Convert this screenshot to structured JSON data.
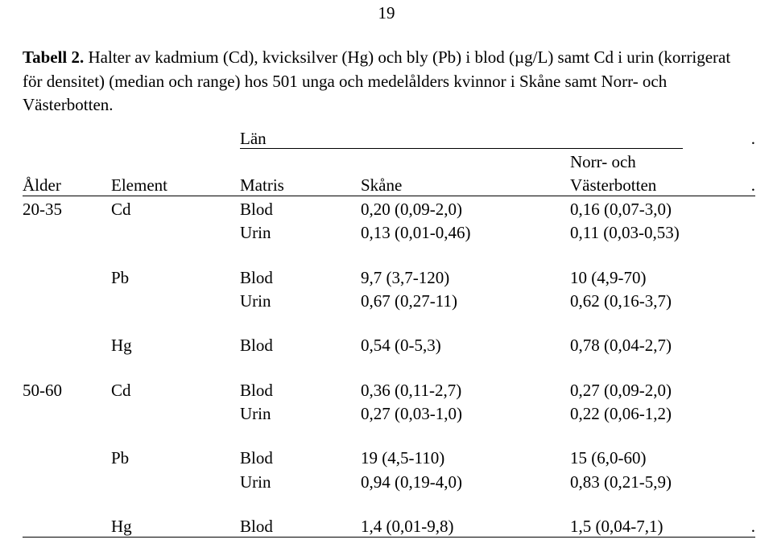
{
  "page_number": "19",
  "caption_bold": "Tabell 2.",
  "caption_rest": " Halter av kadmium (Cd), kvicksilver (Hg) och bly (Pb) i blod (µg/L) samt Cd i urin (korrigerat för densitet) (median och range) hos 501 unga och medelålders kvinnor i Skåne samt Norr- och Västerbotten.",
  "lan_label": "Län",
  "period": ".",
  "headers": {
    "alder": "Ålder",
    "element": "Element",
    "matris": "Matris",
    "skane": "Skåne",
    "norr_top": "Norr- och",
    "norr_bot": "Västerbotten"
  },
  "g1": {
    "age": "20-35",
    "cd": {
      "el": "Cd",
      "blod_m": "Blod",
      "blod_s": "0,20 (0,09-2,0)",
      "blod_v": "0,16 (0,07-3,0)",
      "urin_m": "Urin",
      "urin_s": "0,13 (0,01-0,46)",
      "urin_v": "0,11 (0,03-0,53)"
    },
    "pb": {
      "el": "Pb",
      "blod_m": "Blod",
      "blod_s": "9,7 (3,7-120)",
      "blod_v": "10 (4,9-70)",
      "urin_m": "Urin",
      "urin_s": "0,67 (0,27-11)",
      "urin_v": "0,62 (0,16-3,7)"
    },
    "hg": {
      "el": "Hg",
      "blod_m": "Blod",
      "blod_s": "0,54 (0-5,3)",
      "blod_v": "0,78 (0,04-2,7)"
    }
  },
  "g2": {
    "age": "50-60",
    "cd": {
      "el": "Cd",
      "blod_m": "Blod",
      "blod_s": "0,36 (0,11-2,7)",
      "blod_v": "0,27 (0,09-2,0)",
      "urin_m": "Urin",
      "urin_s": "0,27 (0,03-1,0)",
      "urin_v": "0,22 (0,06-1,2)"
    },
    "pb": {
      "el": "Pb",
      "blod_m": "Blod",
      "blod_s": "19 (4,5-110)",
      "blod_v": "15 (6,0-60)",
      "urin_m": "Urin",
      "urin_s": "0,94 (0,19-4,0)",
      "urin_v": "0,83 (0,21-5,9)"
    },
    "hg": {
      "el": "Hg",
      "blod_m": "Blod",
      "blod_s": "1,4 (0,01-9,8)",
      "blod_v": "1,5 (0,04-7,1)"
    }
  }
}
